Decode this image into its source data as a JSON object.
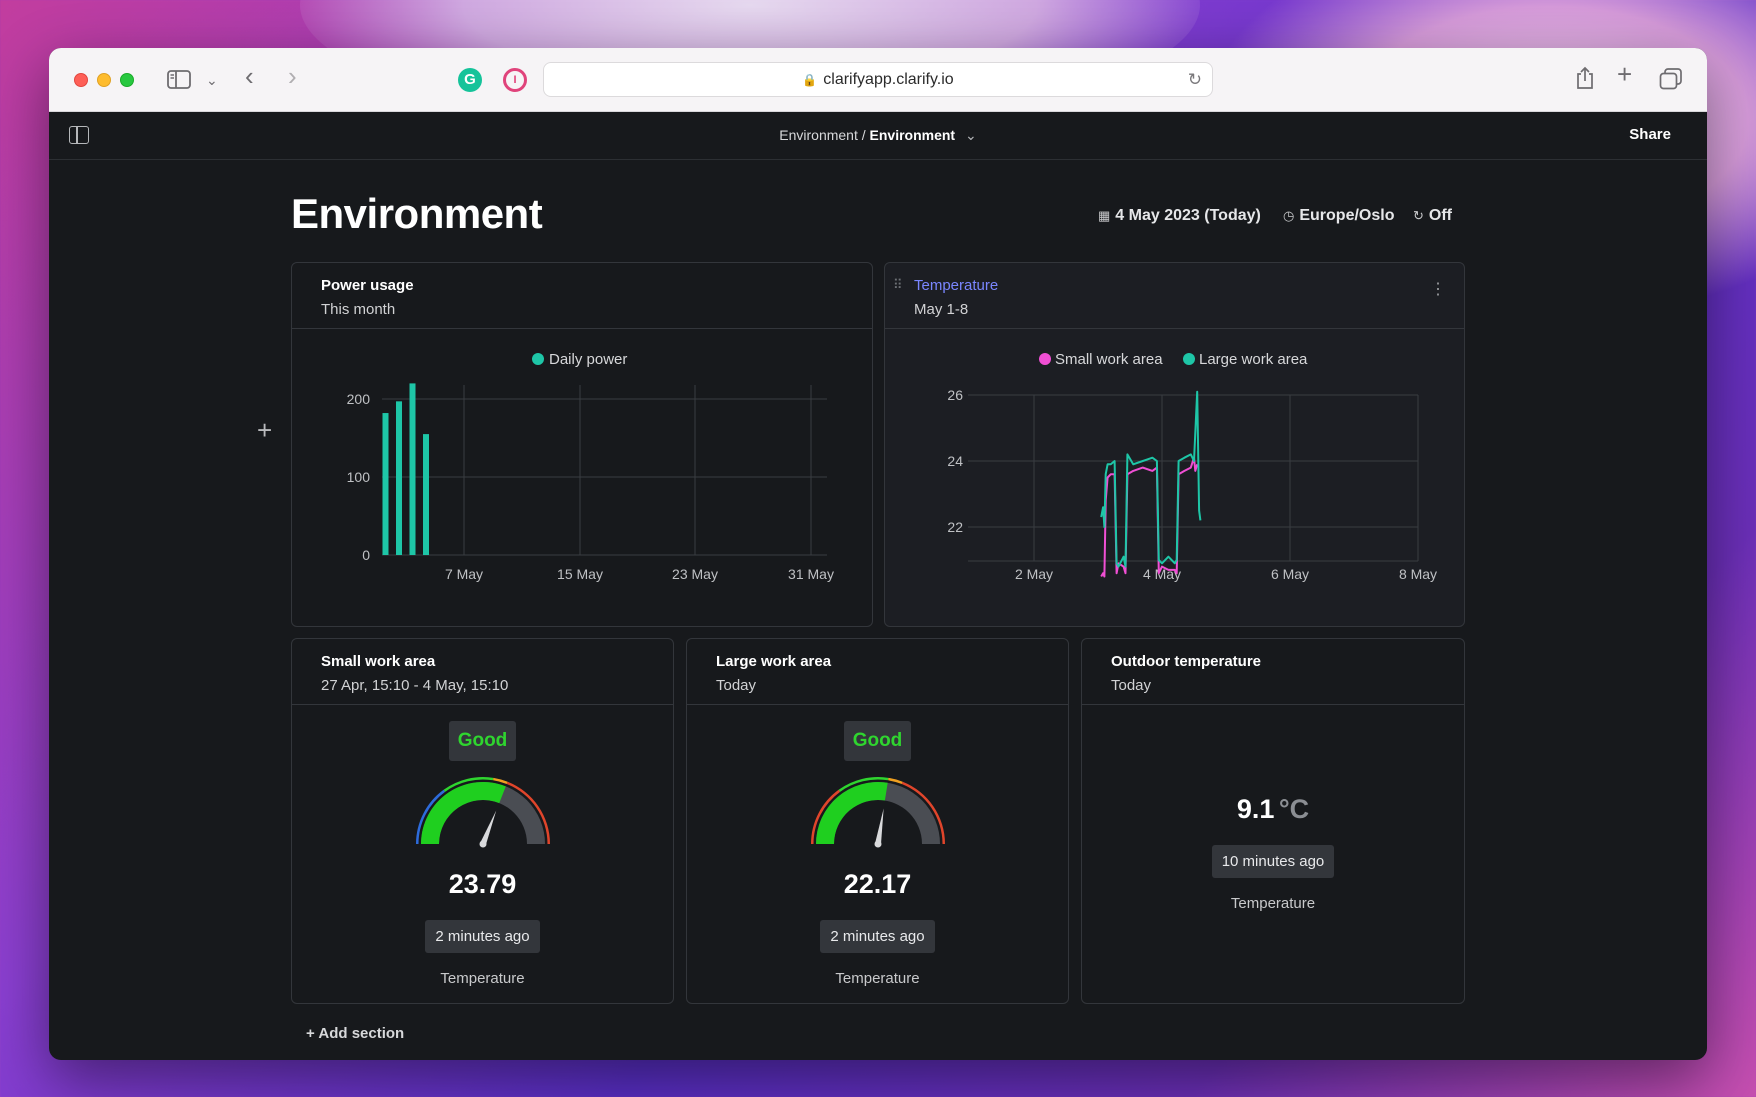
{
  "browser": {
    "url": "clarifyapp.clarify.io"
  },
  "appbar": {
    "breadcrumb_parent": "Environment",
    "breadcrumb_separator": "/",
    "breadcrumb_current": "Environment",
    "share_label": "Share"
  },
  "page": {
    "title": "Environment",
    "date": "4 May 2023 (Today)",
    "timezone": "Europe/Oslo",
    "refresh": "Off",
    "add_section": "Add section"
  },
  "cards": {
    "power": {
      "title": "Power usage",
      "subtitle": "This month"
    },
    "temperature": {
      "title": "Temperature",
      "subtitle": "May 1-8"
    },
    "small": {
      "title": "Small work area",
      "subtitle": "27 Apr, 15:10 - 4 May, 15:10",
      "status": "Good",
      "value": "23.79",
      "updated": "2 minutes ago",
      "caption": "Temperature",
      "gauge_fraction": 0.62
    },
    "large": {
      "title": "Large work area",
      "subtitle": "Today",
      "status": "Good",
      "value": "22.17",
      "updated": "2 minutes ago",
      "caption": "Temperature",
      "gauge_fraction": 0.55
    },
    "outdoor": {
      "title": "Outdoor temperature",
      "subtitle": "Today",
      "value": "9.1",
      "unit": "°C",
      "updated": "10 minutes ago",
      "caption": "Temperature"
    }
  },
  "colors": {
    "teal": "#1ec6a7",
    "pink": "#f04fd4",
    "good": "#2fd52f",
    "link": "#7a86ff"
  },
  "chart_data": [
    {
      "type": "bar",
      "title": "Power usage",
      "legend": [
        "Daily power"
      ],
      "x": [
        "1 May",
        "2 May",
        "3 May",
        "4 May"
      ],
      "values": [
        182,
        197,
        220,
        155
      ],
      "xticks": [
        "7 May",
        "15 May",
        "23 May",
        "31 May"
      ],
      "yticks": [
        "0",
        "100",
        "200"
      ],
      "ylim": [
        0,
        220
      ]
    },
    {
      "type": "line",
      "title": "Temperature",
      "xticks": [
        "2 May",
        "4 May",
        "6 May",
        "8 May"
      ],
      "yticks": [
        "22",
        "24",
        "26"
      ],
      "xlim": [
        1.0,
        8.0
      ],
      "ylim": [
        20.7,
        26
      ],
      "series": [
        {
          "name": "Small work area",
          "color": "#f04fd4",
          "points": [
            [
              3.05,
              20.5
            ],
            [
              3.08,
              20.6
            ],
            [
              3.1,
              20.5
            ],
            [
              3.12,
              22.8
            ],
            [
              3.15,
              23.5
            ],
            [
              3.2,
              23.6
            ],
            [
              3.26,
              23.6
            ],
            [
              3.29,
              20.6
            ],
            [
              3.32,
              20.9
            ],
            [
              3.4,
              20.8
            ],
            [
              3.43,
              20.6
            ],
            [
              3.46,
              23.6
            ],
            [
              3.55,
              23.7
            ],
            [
              3.7,
              23.8
            ],
            [
              3.85,
              23.7
            ],
            [
              3.92,
              23.8
            ],
            [
              3.95,
              20.6
            ],
            [
              4.0,
              20.8
            ],
            [
              4.1,
              20.7
            ],
            [
              4.2,
              20.7
            ],
            [
              4.23,
              20.6
            ],
            [
              4.26,
              23.6
            ],
            [
              4.35,
              23.7
            ],
            [
              4.45,
              23.8
            ],
            [
              4.5,
              24.1
            ],
            [
              4.52,
              23.7
            ],
            [
              4.55,
              23.9
            ]
          ]
        },
        {
          "name": "Large work area",
          "color": "#1ec6a7",
          "points": [
            [
              3.05,
              22.3
            ],
            [
              3.08,
              22.6
            ],
            [
              3.1,
              22.0
            ],
            [
              3.12,
              23.6
            ],
            [
              3.15,
              23.9
            ],
            [
              3.2,
              23.9
            ],
            [
              3.26,
              24.0
            ],
            [
              3.29,
              20.9
            ],
            [
              3.32,
              20.8
            ],
            [
              3.4,
              21.1
            ],
            [
              3.43,
              20.8
            ],
            [
              3.46,
              24.2
            ],
            [
              3.55,
              23.9
            ],
            [
              3.7,
              24.0
            ],
            [
              3.85,
              24.1
            ],
            [
              3.92,
              24.0
            ],
            [
              3.95,
              21.0
            ],
            [
              4.0,
              20.9
            ],
            [
              4.1,
              21.1
            ],
            [
              4.2,
              20.9
            ],
            [
              4.23,
              21.0
            ],
            [
              4.26,
              24.0
            ],
            [
              4.35,
              24.1
            ],
            [
              4.45,
              24.2
            ],
            [
              4.5,
              24.0
            ],
            [
              4.55,
              26.1
            ],
            [
              4.58,
              22.5
            ],
            [
              4.6,
              22.2
            ]
          ]
        }
      ]
    }
  ]
}
